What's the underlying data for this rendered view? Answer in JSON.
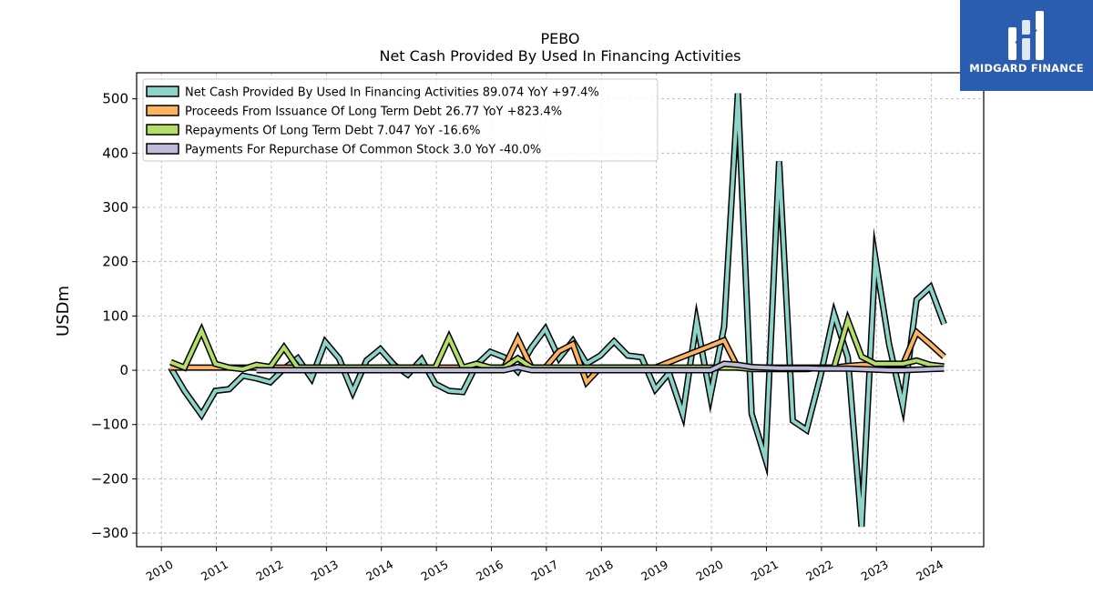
{
  "chart_data": {
    "type": "line",
    "title": "PEBO",
    "subtitle": "Net Cash Provided By Used In Financing Activities",
    "ylabel": "USDm",
    "xlabel": "",
    "ylim": [
      -325,
      548
    ],
    "xlim": [
      2009.55,
      2024.95
    ],
    "yticks": [
      -300,
      -200,
      -100,
      0,
      100,
      200,
      300,
      400,
      500
    ],
    "xticks": [
      2010,
      2011,
      2012,
      2013,
      2014,
      2015,
      2016,
      2017,
      2018,
      2019,
      2020,
      2021,
      2022,
      2023,
      2024
    ],
    "grid": true,
    "legend_placement": "top-left",
    "series": [
      {
        "name": "Net Cash Provided By Used In Financing Activities",
        "legend": "Net Cash Provided By Used In Financing Activities  89.074 YoY +97.4%",
        "color": "#8dd3c7",
        "x": [
          2010.17,
          2010.42,
          2010.73,
          2010.98,
          2011.23,
          2011.48,
          2011.73,
          2011.98,
          2012.23,
          2012.48,
          2012.73,
          2012.98,
          2013.23,
          2013.48,
          2013.73,
          2013.98,
          2014.23,
          2014.48,
          2014.73,
          2014.98,
          2015.23,
          2015.48,
          2015.73,
          2015.98,
          2016.23,
          2016.48,
          2016.73,
          2016.98,
          2017.23,
          2017.48,
          2017.73,
          2017.98,
          2018.23,
          2018.48,
          2018.73,
          2018.98,
          2019.23,
          2019.48,
          2019.73,
          2019.98,
          2020.23,
          2020.48,
          2020.73,
          2020.98,
          2021.23,
          2021.48,
          2021.73,
          2021.98,
          2022.23,
          2022.48,
          2022.73,
          2022.98,
          2023.23,
          2023.48,
          2023.73,
          2023.98,
          2024.23
        ],
        "values": [
          5,
          -38,
          -82,
          -38,
          -35,
          -10,
          -15,
          -22,
          3,
          22,
          -15,
          52,
          22,
          -40,
          18,
          39,
          10,
          -8,
          20,
          -25,
          -38,
          -40,
          10,
          34,
          24,
          -2,
          42,
          76,
          22,
          54,
          12,
          27,
          53,
          27,
          24,
          -35,
          -5,
          -81,
          90,
          -48,
          80,
          510,
          -80,
          -163,
          385,
          -93,
          -110,
          -12,
          104,
          24,
          -288,
          207,
          48,
          -65,
          130,
          153,
          85
        ]
      },
      {
        "name": "Proceeds From Issuance Of Long Term Debt",
        "legend": "Proceeds From Issuance Of Long Term Debt  26.77 YoY +823.4%",
        "color": "#fdb462",
        "x": [
          2010.17,
          2010.42,
          2010.73,
          2010.98,
          2011.23,
          2011.48,
          2011.73,
          2011.98,
          2012.23,
          2012.48,
          2012.73,
          2012.98,
          2013.23,
          2013.48,
          2013.73,
          2013.98,
          2014.23,
          2014.48,
          2014.73,
          2014.98,
          2015.23,
          2015.48,
          2015.73,
          2015.98,
          2016.23,
          2016.48,
          2016.73,
          2016.98,
          2017.23,
          2017.48,
          2017.73,
          2017.98,
          2018.23,
          2018.48,
          2018.73,
          2018.98,
          2019.23,
          2019.48,
          2019.73,
          2019.98,
          2020.23,
          2020.48,
          2020.73,
          2020.98,
          2021.23,
          2021.48,
          2021.73,
          2021.98,
          2022.23,
          2022.48,
          2022.73,
          2022.98,
          2023.23,
          2023.48,
          2023.73,
          2023.98,
          2024.23
        ],
        "values": [
          5,
          5,
          5,
          5,
          5,
          5,
          5,
          5,
          5,
          5,
          5,
          5,
          5,
          5,
          5,
          5,
          5,
          5,
          5,
          5,
          5,
          5,
          5,
          5,
          5,
          58,
          5,
          5,
          35,
          48,
          -22,
          5,
          5,
          5,
          5,
          5,
          15,
          25,
          35,
          45,
          55,
          5,
          5,
          5,
          5,
          5,
          5,
          5,
          5,
          8,
          10,
          10,
          10,
          10,
          70,
          48,
          25
        ]
      },
      {
        "name": "Repayments Of Long Term Debt",
        "legend": "Repayments Of Long Term Debt  7.047 YoY -16.6%",
        "color": "#b3de69",
        "x": [
          2010.17,
          2010.42,
          2010.73,
          2010.98,
          2011.23,
          2011.48,
          2011.73,
          2011.98,
          2012.23,
          2012.48,
          2012.73,
          2012.98,
          2013.23,
          2013.48,
          2013.73,
          2013.98,
          2014.23,
          2014.48,
          2014.73,
          2014.98,
          2015.23,
          2015.48,
          2015.73,
          2015.98,
          2016.23,
          2016.48,
          2016.73,
          2016.98,
          2017.23,
          2017.48,
          2017.73,
          2017.98,
          2018.23,
          2018.48,
          2018.73,
          2018.98,
          2019.23,
          2019.48,
          2019.73,
          2019.98,
          2020.23,
          2020.48,
          2020.73,
          2020.98,
          2021.23,
          2021.48,
          2021.73,
          2021.98,
          2022.23,
          2022.48,
          2022.73,
          2022.98,
          2023.23,
          2023.48,
          2023.73,
          2023.98,
          2024.23
        ],
        "values": [
          15,
          5,
          73,
          12,
          5,
          2,
          10,
          6,
          42,
          5,
          5,
          5,
          5,
          5,
          5,
          5,
          5,
          5,
          5,
          5,
          60,
          5,
          12,
          5,
          5,
          22,
          5,
          5,
          5,
          5,
          5,
          5,
          5,
          5,
          5,
          5,
          5,
          5,
          5,
          5,
          5,
          5,
          2,
          2,
          2,
          2,
          2,
          5,
          5,
          92,
          25,
          12,
          12,
          12,
          18,
          10,
          7
        ]
      },
      {
        "name": "Payments For Repurchase Of Common Stock",
        "legend": "Payments For Repurchase Of Common Stock  3.0 YoY -40.0%",
        "color": "#bebada",
        "x": [
          2011.73,
          2011.98,
          2012.23,
          2012.48,
          2012.73,
          2012.98,
          2013.23,
          2013.48,
          2013.73,
          2013.98,
          2014.23,
          2014.48,
          2014.73,
          2014.98,
          2015.23,
          2015.48,
          2015.73,
          2015.98,
          2016.23,
          2016.48,
          2016.73,
          2016.98,
          2017.23,
          2017.48,
          2017.73,
          2017.98,
          2018.23,
          2018.48,
          2018.73,
          2018.98,
          2019.23,
          2019.48,
          2019.73,
          2019.98,
          2020.23,
          2020.48,
          2020.73,
          2020.98,
          2021.23,
          2021.48,
          2021.73,
          2021.98,
          2022.23,
          2022.48,
          2022.73,
          2022.98,
          2023.23,
          2023.48,
          2023.73,
          2023.98,
          2024.23
        ],
        "values": [
          0,
          0,
          0,
          0,
          0,
          0,
          0,
          0,
          0,
          0,
          0,
          0,
          0,
          0,
          0,
          0,
          0,
          0,
          0,
          6,
          0,
          0,
          0,
          0,
          0,
          0,
          0,
          0,
          0,
          0,
          0,
          0,
          0,
          0,
          12,
          10,
          6,
          5,
          4,
          4,
          4,
          3,
          3,
          3,
          2,
          1,
          0,
          0,
          1,
          2,
          3
        ]
      }
    ]
  },
  "logo": {
    "name": "MIDGARD FINANCE",
    "icon": "midgard-logo-icon"
  }
}
